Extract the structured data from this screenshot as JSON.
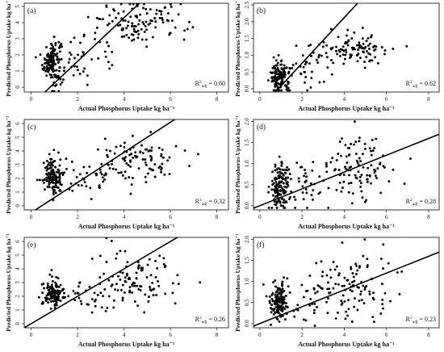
{
  "figure": {
    "x_axis_title": "Actual Phosphorus Uptake kg ha⁻¹",
    "y_axis_title": "Predicted Phosphorus Uptake kg ha⁻¹"
  },
  "chart_data": [
    {
      "id": "a",
      "type": "scatter",
      "label": "(a)",
      "r2_prefix": "R",
      "r2_sup": "2",
      "r2_sub": "adj",
      "r2_value": "= 0.60",
      "xlim": [
        -0.3,
        8.5
      ],
      "ylim": [
        -0.3,
        5.2
      ],
      "xticks": [
        0,
        2,
        4,
        6,
        8
      ],
      "yticks": [
        0,
        1,
        2,
        3,
        4,
        5
      ],
      "fit": {
        "intercept": -1.1,
        "slope": 1.35
      },
      "clusters": [
        {
          "cx": 0.9,
          "cy": 1.6,
          "sx": 0.2,
          "sy": 0.7,
          "n": 130
        },
        {
          "cx": 1.8,
          "cy": 1.5,
          "sx": 0.45,
          "sy": 0.7,
          "n": 30
        },
        {
          "cx": 3.3,
          "cy": 3.2,
          "sx": 0.5,
          "sy": 0.8,
          "n": 25
        },
        {
          "cx": 4.9,
          "cy": 4.0,
          "sx": 0.9,
          "sy": 0.65,
          "n": 105
        }
      ]
    },
    {
      "id": "b",
      "type": "scatter",
      "label": "(b)",
      "r2_prefix": "R",
      "r2_sup": "2",
      "r2_sub": "adj",
      "r2_value": "= 0.62",
      "xlim": [
        -0.3,
        8.5
      ],
      "ylim": [
        -0.1,
        2.55
      ],
      "xticks": [
        0,
        2,
        4,
        6,
        8
      ],
      "yticks": [
        0.0,
        0.5,
        1.0,
        1.5,
        2.0,
        2.5
      ],
      "fit": {
        "intercept": -0.6,
        "slope": 0.68
      },
      "clusters": [
        {
          "cx": 0.95,
          "cy": 0.35,
          "sx": 0.22,
          "sy": 0.25,
          "n": 135
        },
        {
          "cx": 2.2,
          "cy": 0.55,
          "sx": 0.5,
          "sy": 0.3,
          "n": 30
        },
        {
          "cx": 4.5,
          "cy": 1.2,
          "sx": 0.9,
          "sy": 0.25,
          "n": 105
        }
      ]
    },
    {
      "id": "c",
      "type": "scatter",
      "label": "(c)",
      "r2_prefix": "R",
      "r2_sup": "2",
      "r2_sub": "adj",
      "r2_value": "= 0.32",
      "xlim": [
        -0.3,
        8.5
      ],
      "ylim": [
        -0.3,
        6.3
      ],
      "xticks": [
        0,
        2,
        4,
        6,
        8
      ],
      "yticks": [
        0,
        1,
        2,
        3,
        4,
        5,
        6
      ],
      "fit": {
        "intercept": -0.5,
        "slope": 1.1
      },
      "clusters": [
        {
          "cx": 0.95,
          "cy": 2.1,
          "sx": 0.22,
          "sy": 0.75,
          "n": 135
        },
        {
          "cx": 2.3,
          "cy": 2.0,
          "sx": 0.5,
          "sy": 0.7,
          "n": 30
        },
        {
          "cx": 4.5,
          "cy": 3.3,
          "sx": 0.9,
          "sy": 0.8,
          "n": 105
        }
      ]
    },
    {
      "id": "d",
      "type": "scatter",
      "label": "(d)",
      "r2_prefix": "R",
      "r2_sup": "2",
      "r2_sub": "adj",
      "r2_value": "= 0.28",
      "xlim": [
        -0.3,
        8.5
      ],
      "ylim": [
        -0.1,
        2.05
      ],
      "xticks": [
        0,
        2,
        4,
        6,
        8
      ],
      "yticks": [
        0.0,
        0.5,
        1.0,
        1.5,
        2.0
      ],
      "fit": {
        "intercept": 0.0,
        "slope": 0.2
      },
      "clusters": [
        {
          "cx": 0.95,
          "cy": 0.45,
          "sx": 0.22,
          "sy": 0.3,
          "n": 135
        },
        {
          "cx": 2.2,
          "cy": 0.5,
          "sx": 0.5,
          "sy": 0.3,
          "n": 30
        },
        {
          "cx": 4.5,
          "cy": 0.9,
          "sx": 0.9,
          "sy": 0.4,
          "n": 105
        }
      ]
    },
    {
      "id": "e",
      "type": "scatter",
      "label": "(e)",
      "r2_prefix": "R",
      "r2_sup": "2",
      "r2_sub": "adj",
      "r2_value": "= 0.26",
      "xlim": [
        -0.3,
        8.5
      ],
      "ylim": [
        -0.3,
        6.3
      ],
      "xticks": [
        0,
        2,
        4,
        6,
        8
      ],
      "yticks": [
        0,
        1,
        2,
        3,
        4,
        5,
        6
      ],
      "fit": {
        "intercept": 0.0,
        "slope": 1.0
      },
      "clusters": [
        {
          "cx": 0.95,
          "cy": 2.2,
          "sx": 0.22,
          "sy": 0.5,
          "n": 135
        },
        {
          "cx": 2.3,
          "cy": 2.2,
          "sx": 0.5,
          "sy": 0.6,
          "n": 30
        },
        {
          "cx": 4.5,
          "cy": 3.2,
          "sx": 0.9,
          "sy": 1.1,
          "n": 105
        }
      ]
    },
    {
      "id": "f",
      "type": "scatter",
      "label": "(f)",
      "r2_prefix": "R",
      "r2_sup": "2",
      "r2_sub": "adj",
      "r2_value": "= 0.23",
      "xlim": [
        -0.3,
        8.5
      ],
      "ylim": [
        -0.1,
        2.05
      ],
      "xticks": [
        0,
        2,
        4,
        6,
        8
      ],
      "yticks": [
        0.0,
        0.5,
        1.0,
        1.5,
        2.0
      ],
      "fit": {
        "intercept": 0.0,
        "slope": 0.2
      },
      "clusters": [
        {
          "cx": 0.95,
          "cy": 0.5,
          "sx": 0.22,
          "sy": 0.25,
          "n": 135
        },
        {
          "cx": 2.3,
          "cy": 0.5,
          "sx": 0.5,
          "sy": 0.3,
          "n": 30
        },
        {
          "cx": 4.5,
          "cy": 0.9,
          "sx": 0.9,
          "sy": 0.45,
          "n": 105
        }
      ]
    }
  ]
}
